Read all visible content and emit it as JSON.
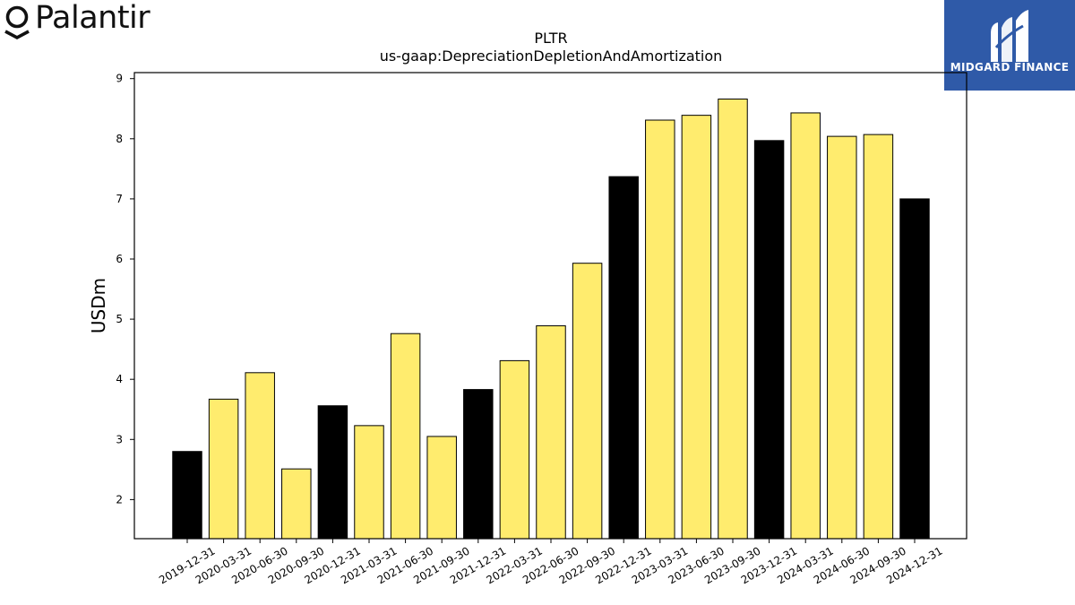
{
  "brand": {
    "left_logo": {
      "text": "Palantir",
      "icon": "palantir-ring-icon"
    },
    "right_logo": {
      "text": "MIDGARD FINANCE",
      "icon": "midgard-m-icon",
      "background": "#2f5aa8"
    }
  },
  "chart_data": {
    "type": "bar",
    "title": "PLTR",
    "subtitle": "us-gaap:DepreciationDepletionAndAmortization",
    "xlabel": "",
    "ylabel": "USDm",
    "ylim": [
      1.35,
      9.1
    ],
    "yticks": [
      2,
      3,
      4,
      5,
      6,
      7,
      8,
      9
    ],
    "grid": false,
    "colors": {
      "quarter": "#ffec6e",
      "year_end": "#000000",
      "edge": "#000000"
    },
    "categories": [
      "2019-12-31",
      "2020-03-31",
      "2020-06-30",
      "2020-09-30",
      "2020-12-31",
      "2021-03-31",
      "2021-06-30",
      "2021-09-30",
      "2021-12-31",
      "2022-03-31",
      "2022-06-30",
      "2022-09-30",
      "2022-12-31",
      "2023-03-31",
      "2023-06-30",
      "2023-09-30",
      "2023-12-31",
      "2024-03-31",
      "2024-06-30",
      "2024-09-30",
      "2024-12-31"
    ],
    "values": [
      2.8,
      3.67,
      4.11,
      2.51,
      3.56,
      3.23,
      4.76,
      3.05,
      3.83,
      4.31,
      4.89,
      5.93,
      7.37,
      8.31,
      8.39,
      8.66,
      7.97,
      8.43,
      8.04,
      8.07,
      7.0
    ],
    "year_end": [
      true,
      false,
      false,
      false,
      true,
      false,
      false,
      false,
      true,
      false,
      false,
      false,
      true,
      false,
      false,
      false,
      true,
      false,
      false,
      false,
      true
    ]
  }
}
